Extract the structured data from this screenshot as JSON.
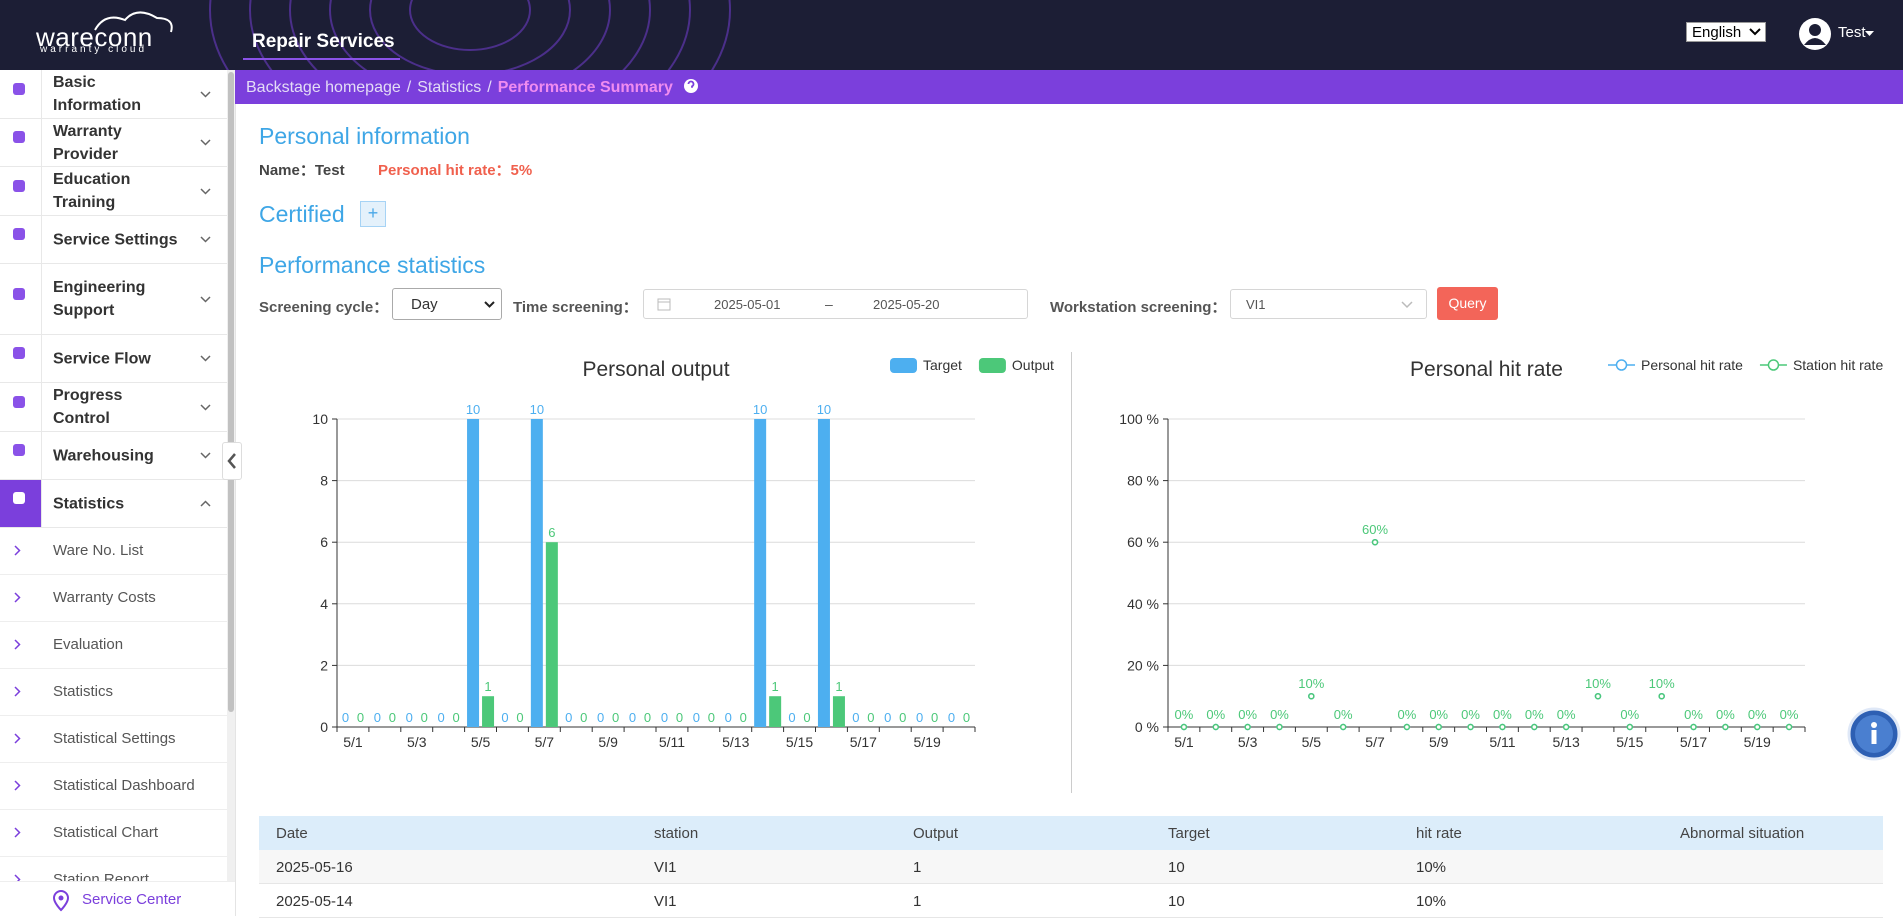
{
  "header": {
    "logo": "wareconn",
    "logo_sub": "warranty cloud",
    "app": "Repair Services",
    "language": "English",
    "user": "Test"
  },
  "sidebar": {
    "menu": [
      "Basic Information",
      "Warranty Provider",
      "Education Training",
      "Service Settings",
      "Engineering Support",
      "Service Flow",
      "Progress Control",
      "Warehousing",
      "Statistics"
    ],
    "submenu": [
      "Ware No. List",
      "Warranty Costs",
      "Evaluation",
      "Statistics",
      "Statistical Settings",
      "Statistical Dashboard",
      "Statistical Chart",
      "Station Report"
    ],
    "footer": "Service Center"
  },
  "breadcrumb": {
    "items": [
      "Backstage homepage",
      "Statistics",
      "Performance Summary"
    ],
    "separator": "/"
  },
  "personal": {
    "title": "Personal information",
    "name": "Name：Test",
    "hit_rate": "Personal hit rate：5%"
  },
  "certified": {
    "title": "Certified",
    "add": "+"
  },
  "performance": {
    "title": "Performance statistics",
    "cycle_label": "Screening cycle：",
    "cycle": "Day",
    "time_label": "Time screening：",
    "start": "2025-05-01",
    "range_sep": "–",
    "end": "2025-05-20",
    "station_label": "Workstation screening：",
    "station": "VI1",
    "query": "Query"
  },
  "chart_data": [
    {
      "type": "bar",
      "title": "Personal output",
      "categories": [
        "5/1",
        null,
        "5/3",
        null,
        "5/5",
        null,
        "5/7",
        null,
        "5/9",
        null,
        "5/11",
        null,
        "5/13",
        null,
        "5/15",
        null,
        "5/17",
        null,
        "5/19",
        null
      ],
      "series": [
        {
          "name": "Target",
          "color": "#4daff0",
          "values": [
            0,
            0,
            0,
            0,
            10,
            0,
            10,
            0,
            0,
            0,
            0,
            0,
            0,
            10,
            0,
            10,
            0,
            0,
            0,
            0
          ]
        },
        {
          "name": "Output",
          "color": "#4cc879",
          "values": [
            0,
            0,
            0,
            0,
            1,
            0,
            6,
            0,
            0,
            0,
            0,
            0,
            0,
            1,
            0,
            1,
            0,
            0,
            0,
            0
          ]
        }
      ],
      "ylim": [
        0,
        10
      ],
      "yticks": [
        0,
        2,
        4,
        6,
        8,
        10
      ],
      "grid": true,
      "legend": "top-right"
    },
    {
      "type": "line",
      "title": "Personal hit rate",
      "categories": [
        "5/1",
        null,
        "5/3",
        null,
        "5/5",
        null,
        "5/7",
        null,
        "5/9",
        null,
        "5/11",
        null,
        "5/13",
        null,
        "5/15",
        null,
        "5/17",
        null,
        "5/19",
        null
      ],
      "series": [
        {
          "name": "Personal hit rate",
          "color": "#4daff0",
          "values": [
            0,
            0,
            0,
            0,
            10,
            0,
            60,
            0,
            0,
            0,
            0,
            0,
            0,
            10,
            0,
            10,
            0,
            0,
            0,
            0
          ]
        },
        {
          "name": "Station hit rate",
          "color": "#4cc879",
          "values": [
            0,
            0,
            0,
            0,
            10,
            0,
            60,
            0,
            0,
            0,
            0,
            0,
            0,
            10,
            0,
            10,
            0,
            0,
            0,
            0
          ],
          "value_labels": [
            "0%",
            "0%",
            "0%",
            "0%",
            "10%",
            "0%",
            "60%",
            "0%",
            "0%",
            "0%",
            "0%",
            "0%",
            "0%",
            "10%",
            "0%",
            "10%",
            "0%",
            "0%",
            "0%",
            "0%"
          ]
        }
      ],
      "ylim": [
        0,
        100
      ],
      "yticks": [
        {
          "value": 0,
          "label": "0 %"
        },
        {
          "value": 20,
          "label": "20 %"
        },
        {
          "value": 40,
          "label": "40 %"
        },
        {
          "value": 60,
          "label": "60 %"
        },
        {
          "value": 80,
          "label": "80 %"
        },
        {
          "value": 100,
          "label": "100 %"
        }
      ],
      "grid": true,
      "legend": "top-right"
    }
  ],
  "table": {
    "columns": [
      "Date",
      "station",
      "Output",
      "Target",
      "hit rate",
      "Abnormal situation"
    ],
    "rows": [
      [
        "2025-05-16",
        "VI1",
        "1",
        "10",
        "10%"
      ],
      [
        "2025-05-14",
        "VI1",
        "1",
        "10",
        "10%"
      ]
    ]
  }
}
